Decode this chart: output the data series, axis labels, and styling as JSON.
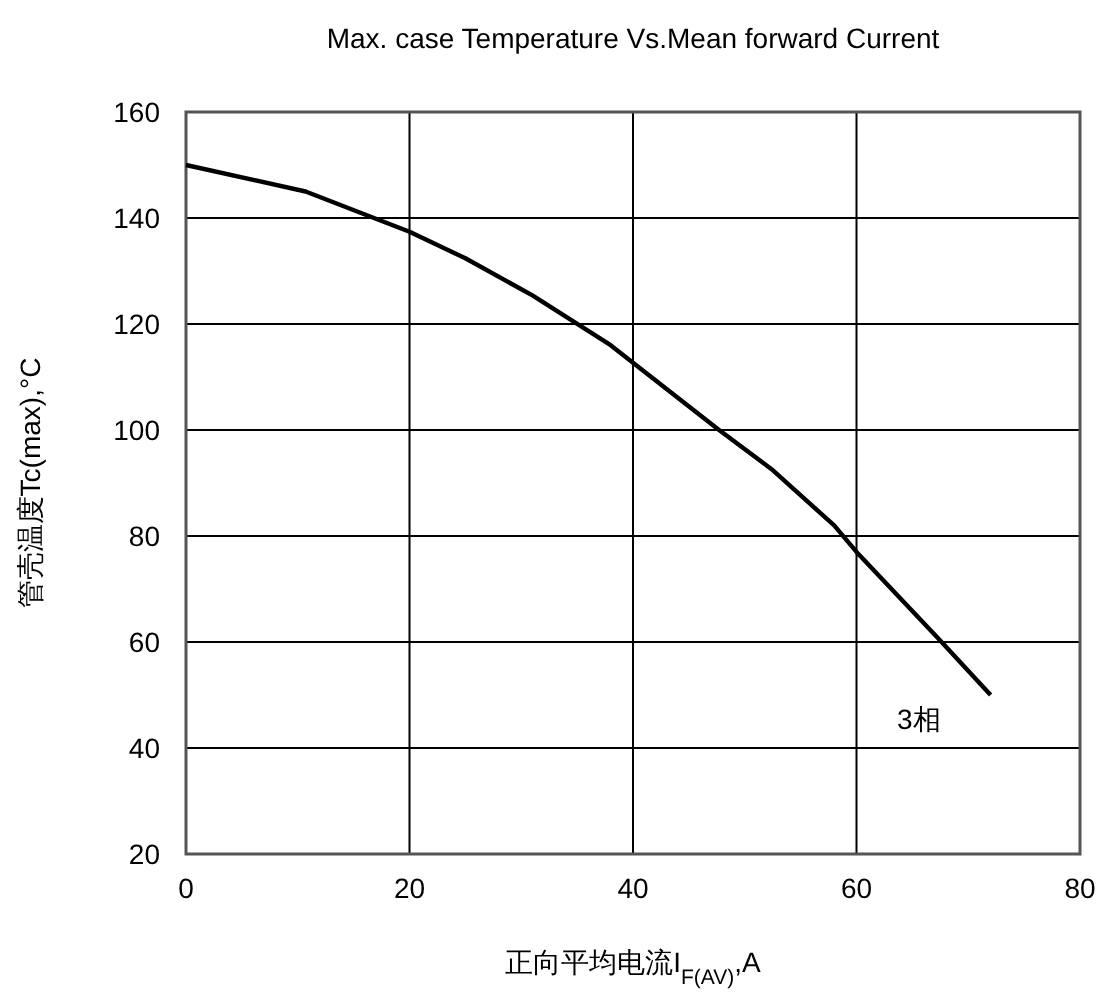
{
  "chart_data": {
    "type": "line",
    "title": "Max. case Temperature Vs.Mean forward Current",
    "xlabel": "正向平均电流I$_{F(AV)}$,A",
    "ylabel": "管壳温度Tc(max),°C",
    "x": [
      0,
      10.7,
      20,
      25,
      31,
      38,
      40,
      47.7,
      52.4,
      58,
      60,
      67.3,
      72
    ],
    "series": [
      {
        "name": "3相",
        "color": "#000000",
        "values": [
          150,
          145,
          137.4,
          132.4,
          125.4,
          116,
          112.7,
          100,
          92.6,
          82,
          77,
          60.7,
          50
        ]
      }
    ],
    "xlim": [
      0,
      80
    ],
    "xticks": [
      0,
      20,
      40,
      60,
      80
    ],
    "ylim": [
      20,
      160
    ],
    "yticks": [
      20,
      40,
      60,
      80,
      100,
      120,
      140,
      160
    ],
    "grid": true,
    "marker": "none",
    "line_style": "solid"
  }
}
